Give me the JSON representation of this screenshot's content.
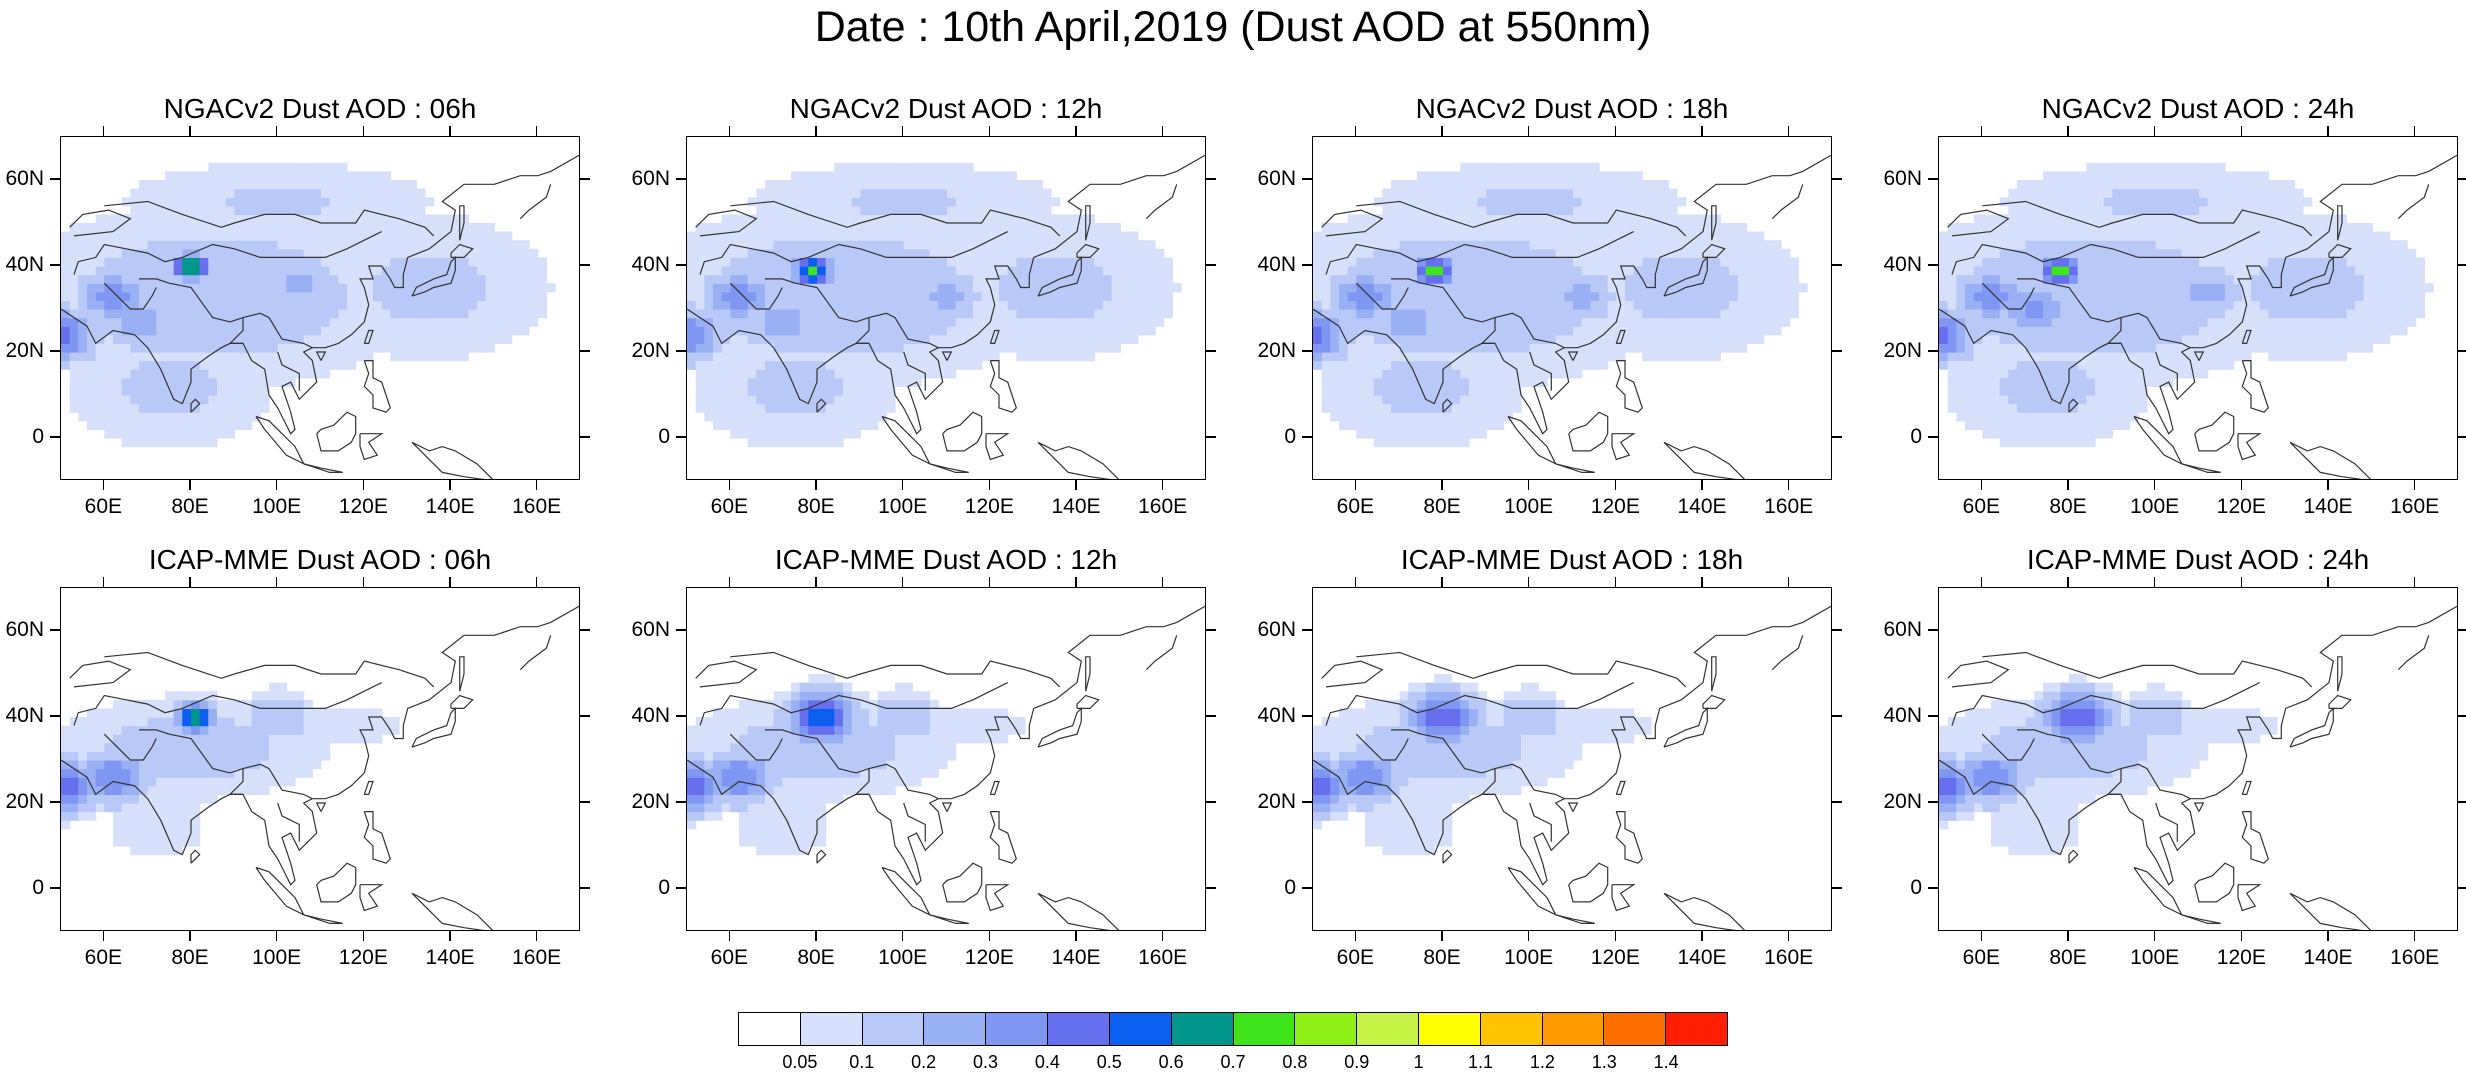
{
  "title": "Date : 10th April,2019 (Dust AOD at 550nm)",
  "panels": [
    {
      "title": "NGACv2 Dust AOD : 06h",
      "model": "NGACv2",
      "lead": "06h",
      "cores": [
        {
          "lon": 80,
          "lat": 40,
          "aod": 0.75
        },
        {
          "lon": 62,
          "lat": 33,
          "aod": 0.35
        },
        {
          "lon": 50,
          "lat": 24,
          "aod": 0.45
        },
        {
          "lon": 68,
          "lat": 27,
          "aod": 0.3
        },
        {
          "lon": 105,
          "lat": 36,
          "aod": 0.25
        }
      ]
    },
    {
      "title": "NGACv2 Dust AOD : 12h",
      "model": "NGACv2",
      "lead": "12h",
      "cores": [
        {
          "lon": 79,
          "lat": 39,
          "aod": 0.75
        },
        {
          "lon": 62,
          "lat": 33,
          "aod": 0.35
        },
        {
          "lon": 50,
          "lat": 24,
          "aod": 0.4
        },
        {
          "lon": 72,
          "lat": 27,
          "aod": 0.3
        },
        {
          "lon": 110,
          "lat": 33,
          "aod": 0.25
        }
      ]
    },
    {
      "title": "NGACv2 Dust AOD : 18h",
      "model": "NGACv2",
      "lead": "18h",
      "cores": [
        {
          "lon": 78,
          "lat": 39,
          "aod": 0.75
        },
        {
          "lon": 62,
          "lat": 33,
          "aod": 0.35
        },
        {
          "lon": 50,
          "lat": 24,
          "aod": 0.45
        },
        {
          "lon": 72,
          "lat": 27,
          "aod": 0.3
        },
        {
          "lon": 112,
          "lat": 33,
          "aod": 0.25
        }
      ]
    },
    {
      "title": "NGACv2 Dust AOD : 24h",
      "model": "NGACv2",
      "lead": "24h",
      "cores": [
        {
          "lon": 78,
          "lat": 39,
          "aod": 0.75
        },
        {
          "lon": 62,
          "lat": 33,
          "aod": 0.35
        },
        {
          "lon": 50,
          "lat": 24,
          "aod": 0.45
        },
        {
          "lon": 72,
          "lat": 30,
          "aod": 0.35
        },
        {
          "lon": 112,
          "lat": 34,
          "aod": 0.25
        }
      ]
    },
    {
      "title": "ICAP-MME Dust AOD : 06h",
      "model": "ICAP-MME",
      "lead": "06h",
      "cores": [
        {
          "lon": 81,
          "lat": 40,
          "aod": 0.75
        },
        {
          "lon": 50,
          "lat": 24,
          "aod": 0.5
        },
        {
          "lon": 62,
          "lat": 26,
          "aod": 0.4
        },
        {
          "lon": 100,
          "lat": 40,
          "aod": 0.2
        }
      ]
    },
    {
      "title": "ICAP-MME Dust AOD : 12h",
      "model": "ICAP-MME",
      "lead": "12h",
      "cores": [
        {
          "lon": 81,
          "lat": 40,
          "aod": 0.55
        },
        {
          "lon": 50,
          "lat": 24,
          "aod": 0.5
        },
        {
          "lon": 62,
          "lat": 26,
          "aod": 0.4
        },
        {
          "lon": 100,
          "lat": 40,
          "aod": 0.2
        }
      ]
    },
    {
      "title": "ICAP-MME Dust AOD : 18h",
      "model": "ICAP-MME",
      "lead": "18h",
      "cores": [
        {
          "lon": 80,
          "lat": 40,
          "aod": 0.5
        },
        {
          "lon": 50,
          "lat": 24,
          "aod": 0.5
        },
        {
          "lon": 62,
          "lat": 26,
          "aod": 0.4
        },
        {
          "lon": 100,
          "lat": 40,
          "aod": 0.2
        }
      ]
    },
    {
      "title": "ICAP-MME Dust AOD : 24h",
      "model": "ICAP-MME",
      "lead": "24h",
      "cores": [
        {
          "lon": 82,
          "lat": 40,
          "aod": 0.5
        },
        {
          "lon": 50,
          "lat": 24,
          "aod": 0.5
        },
        {
          "lon": 62,
          "lat": 26,
          "aod": 0.4
        },
        {
          "lon": 100,
          "lat": 40,
          "aod": 0.2
        }
      ]
    }
  ],
  "map": {
    "lon_range": [
      50,
      170
    ],
    "lat_range": [
      -10,
      70
    ],
    "lon_ticks": [
      60,
      80,
      100,
      120,
      140,
      160
    ],
    "lat_ticks": [
      0,
      20,
      40,
      60
    ],
    "lon_tick_labels": [
      "60E",
      "80E",
      "100E",
      "120E",
      "140E",
      "160E"
    ],
    "lat_tick_labels": [
      "0",
      "20N",
      "40N",
      "60N"
    ]
  },
  "colorbar": {
    "labels": [
      "0.05",
      "0.1",
      "0.2",
      "0.3",
      "0.4",
      "0.5",
      "0.6",
      "0.7",
      "0.8",
      "0.9",
      "1",
      "1.1",
      "1.2",
      "1.3",
      "1.4"
    ],
    "levels": [
      0.05,
      0.1,
      0.2,
      0.3,
      0.4,
      0.5,
      0.6,
      0.7,
      0.8,
      0.9,
      1.0,
      1.1,
      1.2,
      1.3,
      1.4
    ],
    "colors": [
      "#ffffff",
      "#d6e0fb",
      "#b8c9f8",
      "#99b0f5",
      "#7f97f2",
      "#6670ee",
      "#0a5ff0",
      "#00968c",
      "#3ee51c",
      "#8ff018",
      "#c6f446",
      "#ffff00",
      "#ffc400",
      "#ff9a00",
      "#ff6f00",
      "#ff1e00"
    ]
  },
  "coast_color": "#333333"
}
